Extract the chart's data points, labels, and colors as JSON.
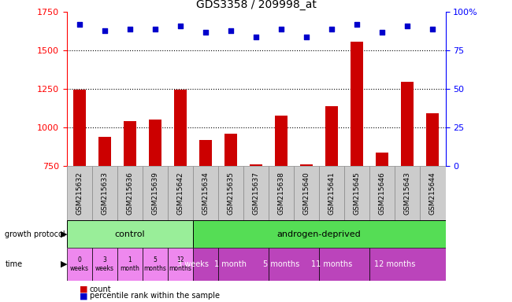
{
  "title": "GDS3358 / 209998_at",
  "samples": [
    "GSM215632",
    "GSM215633",
    "GSM215636",
    "GSM215639",
    "GSM215642",
    "GSM215634",
    "GSM215635",
    "GSM215637",
    "GSM215638",
    "GSM215640",
    "GSM215641",
    "GSM215645",
    "GSM215646",
    "GSM215643",
    "GSM215644"
  ],
  "bar_values": [
    1248,
    940,
    1040,
    1050,
    1248,
    920,
    960,
    760,
    1080,
    762,
    1140,
    1560,
    840,
    1295,
    1095
  ],
  "percentile_values": [
    92,
    88,
    89,
    89,
    91,
    87,
    88,
    84,
    89,
    84,
    89,
    92,
    87,
    91,
    89
  ],
  "ylim_left": [
    750,
    1750
  ],
  "ylim_right": [
    0,
    100
  ],
  "yticks_left": [
    750,
    1000,
    1250,
    1500,
    1750
  ],
  "yticks_right": [
    0,
    25,
    50,
    75,
    100
  ],
  "bar_color": "#cc0000",
  "dot_color": "#0000cc",
  "control_color": "#99ee99",
  "androgen_color": "#55dd55",
  "time_ctrl_color": "#ee88ee",
  "time_andr_color": "#bb44bb",
  "xtick_bg": "#dddddd",
  "control_samples": 5,
  "androgen_samples": 10,
  "control_label": "control",
  "androgen_label": "androgen-deprived",
  "control_times": [
    "0\nweeks",
    "3\nweeks",
    "1\nmonth",
    "5\nmonths",
    "12\nmonths"
  ],
  "androgen_times": [
    "3 weeks",
    "1 month",
    "5 months",
    "11 months",
    "12 months"
  ],
  "androgen_time_spans": [
    1,
    2,
    2,
    2,
    3
  ],
  "legend_count_label": "count",
  "legend_pct_label": "percentile rank within the sample"
}
